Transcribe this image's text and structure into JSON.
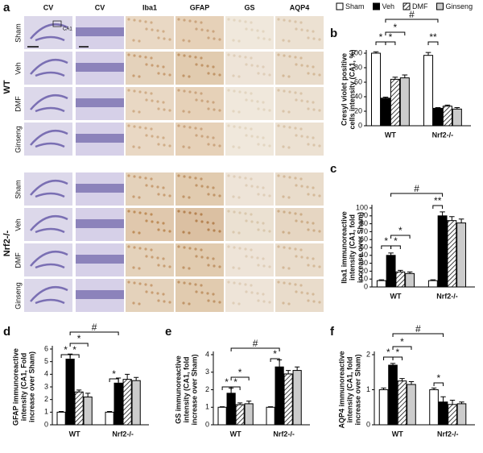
{
  "figure_a": {
    "label": "a",
    "columns": [
      "CV",
      "CV",
      "Iba1",
      "GFAP",
      "GS",
      "AQP4"
    ],
    "inset_label": "CA1",
    "groups": [
      {
        "name": "WT",
        "rows": [
          "Sham",
          "Veh",
          "DMF",
          "Ginseng"
        ]
      },
      {
        "name": "Nrf2-/-",
        "rows": [
          "Sham",
          "Veh",
          "DMF",
          "Ginseng"
        ]
      }
    ]
  },
  "chart_data": [
    {
      "type": "bar",
      "label": "b",
      "legend": "top",
      "ylabel": [
        "Cresyl violet positive",
        "cells intensity (CA1, %)"
      ],
      "categories": [
        "WT",
        "Nrf2-/-"
      ],
      "series": [
        {
          "name": "Sham",
          "color": "#ffffff",
          "values": [
            100,
            97
          ],
          "errors": [
            2,
            4
          ]
        },
        {
          "name": "Veh",
          "color": "#000000",
          "values": [
            38,
            24
          ],
          "errors": [
            1.5,
            1
          ]
        },
        {
          "name": "DMF",
          "color": "#ffffff",
          "hatch": true,
          "values": [
            64,
            27
          ],
          "errors": [
            3,
            1.5
          ]
        },
        {
          "name": "Ginseng",
          "color": "#cccccc",
          "values": [
            66,
            23
          ],
          "errors": [
            4,
            2
          ]
        }
      ],
      "ylim": [
        0,
        100
      ],
      "yticks": [
        0,
        20,
        40,
        60,
        80,
        100
      ],
      "annotations": [
        "*",
        "*",
        "*",
        "#",
        "**"
      ]
    },
    {
      "type": "bar",
      "label": "c",
      "legend": false,
      "ylabel": [
        "Iba1 immunoreactive",
        "intensity (CA1, fold",
        "increase over Sham)"
      ],
      "categories": [
        "WT",
        "Nrf2-/-"
      ],
      "series": [
        {
          "name": "Sham",
          "color": "#ffffff",
          "values": [
            8,
            8
          ],
          "errors": [
            1,
            1
          ]
        },
        {
          "name": "Veh",
          "color": "#000000",
          "values": [
            40,
            90
          ],
          "errors": [
            3,
            5
          ]
        },
        {
          "name": "DMF",
          "color": "#ffffff",
          "hatch": true,
          "values": [
            19,
            84
          ],
          "errors": [
            2,
            5
          ]
        },
        {
          "name": "Ginseng",
          "color": "#cccccc",
          "values": [
            17,
            81
          ],
          "errors": [
            2,
            5
          ]
        }
      ],
      "ylim": [
        0,
        100
      ],
      "yticks": [
        0,
        10,
        20,
        30,
        40,
        50,
        60,
        70,
        80,
        90,
        100
      ],
      "annotations": [
        "*",
        "*",
        "*",
        "#",
        "**"
      ]
    },
    {
      "type": "bar",
      "label": "d",
      "legend": false,
      "ylabel": [
        "GFAP immunoreactive",
        "intensity (CA1, Fold",
        "increase over Sham)"
      ],
      "categories": [
        "WT",
        "Nrf2-/-"
      ],
      "series": [
        {
          "name": "Sham",
          "color": "#ffffff",
          "values": [
            1,
            1
          ],
          "errors": [
            0.05,
            0.05
          ]
        },
        {
          "name": "Veh",
          "color": "#000000",
          "values": [
            5.2,
            3.3
          ],
          "errors": [
            0.4,
            0.4
          ]
        },
        {
          "name": "DMF",
          "color": "#ffffff",
          "hatch": true,
          "values": [
            2.6,
            3.6
          ],
          "errors": [
            0.15,
            0.4
          ]
        },
        {
          "name": "Ginseng",
          "color": "#cccccc",
          "values": [
            2.2,
            3.5
          ],
          "errors": [
            0.3,
            0.25
          ]
        }
      ],
      "ylim": [
        0,
        6
      ],
      "yticks": [
        0,
        1,
        2,
        3,
        4,
        5,
        6
      ],
      "annotations": [
        "*",
        "*",
        "*",
        "#",
        "*"
      ]
    },
    {
      "type": "bar",
      "label": "e",
      "legend": false,
      "ylabel": [
        "GS immunoreactive",
        "intensity (CA1, fold",
        "increase over Sham)"
      ],
      "categories": [
        "WT",
        "Nrf2-/-"
      ],
      "series": [
        {
          "name": "Sham",
          "color": "#ffffff",
          "values": [
            1,
            1
          ],
          "errors": [
            0.03,
            0.03
          ]
        },
        {
          "name": "Veh",
          "color": "#000000",
          "values": [
            1.8,
            3.3
          ],
          "errors": [
            0.3,
            0.4
          ]
        },
        {
          "name": "DMF",
          "color": "#ffffff",
          "hatch": true,
          "values": [
            1.15,
            2.9
          ],
          "errors": [
            0.1,
            0.2
          ]
        },
        {
          "name": "Ginseng",
          "color": "#cccccc",
          "values": [
            1.2,
            3.1
          ],
          "errors": [
            0.15,
            0.2
          ]
        }
      ],
      "ylim": [
        0,
        4
      ],
      "yticks": [
        0,
        1,
        2,
        3,
        4
      ],
      "annotations": [
        "*",
        "*",
        "*",
        "#",
        "*"
      ]
    },
    {
      "type": "bar",
      "label": "f",
      "legend": false,
      "ylabel": [
        "AQP4 immunoreactive",
        "intensity (CA1, fold",
        "increase over Sham)"
      ],
      "categories": [
        "WT",
        "Nrf2-/-"
      ],
      "series": [
        {
          "name": "Sham",
          "color": "#ffffff",
          "values": [
            1.0,
            1.0
          ],
          "errors": [
            0.05,
            0.05
          ]
        },
        {
          "name": "Veh",
          "color": "#000000",
          "values": [
            1.7,
            0.65
          ],
          "errors": [
            0.05,
            0.15
          ]
        },
        {
          "name": "DMF",
          "color": "#ffffff",
          "hatch": true,
          "values": [
            1.25,
            0.58
          ],
          "errors": [
            0.07,
            0.12
          ]
        },
        {
          "name": "Ginseng",
          "color": "#cccccc",
          "values": [
            1.15,
            0.6
          ],
          "errors": [
            0.08,
            0.05
          ]
        }
      ],
      "ylim": [
        0,
        2
      ],
      "yticks": [
        0,
        1,
        2
      ],
      "annotations": [
        "*",
        "*",
        "*",
        "#",
        "*"
      ]
    }
  ]
}
